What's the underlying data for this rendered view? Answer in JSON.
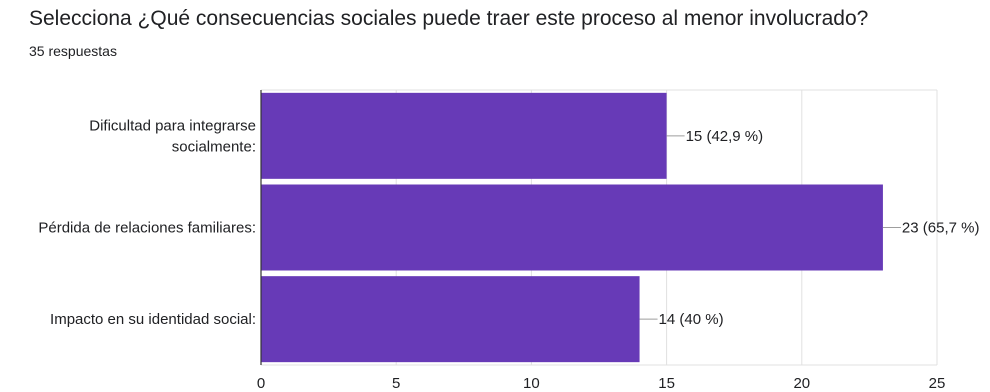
{
  "chart_data": {
    "type": "bar",
    "orientation": "horizontal",
    "title": "Selecciona ¿Qué consecuencias sociales puede traer este proceso al menor involucrado?",
    "subtitle": "35 respuestas",
    "categories": [
      [
        "Dificultad para integrarse",
        "socialmente:"
      ],
      [
        "Pérdida de relaciones familiares:"
      ],
      [
        "Impacto en su identidad social:"
      ]
    ],
    "values": [
      15,
      23,
      14
    ],
    "data_labels": [
      "15 (42,9 %)",
      "23 (65,7 %)",
      "14 (40 %)"
    ],
    "xlim": [
      0,
      25
    ],
    "xticks": [
      0,
      5,
      10,
      15,
      20,
      25
    ],
    "grid": true,
    "bar_color": "#673ab7"
  }
}
